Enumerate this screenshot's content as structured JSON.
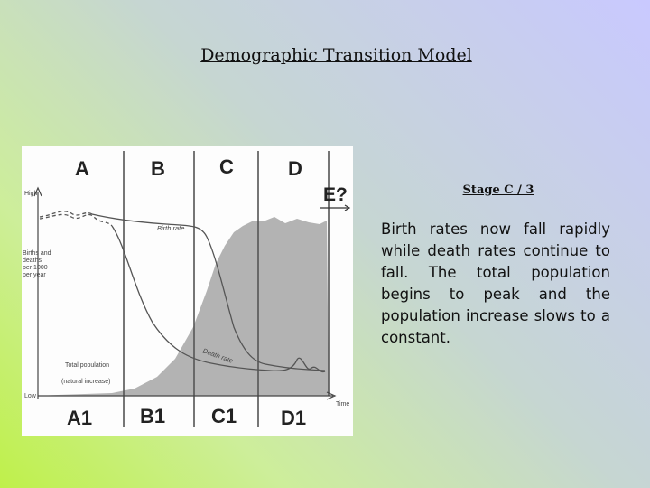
{
  "slide": {
    "title": "Demographic Transition Model",
    "stage_heading": "Stage C / 3",
    "description": "Birth rates now fall rapidly while death rates continue to fall. The total population begins to peak and the population increase slows to a constant."
  },
  "diagram": {
    "stages_top": [
      "A",
      "B",
      "C",
      "D"
    ],
    "stages_bottom": [
      "A1",
      "B1",
      "C1",
      "D1"
    ],
    "extra_stage": "E?",
    "y_axis": {
      "high_label": "High",
      "low_label": "Low",
      "axis_label_lines": [
        "Births and",
        "deaths",
        "per 1000",
        "per year"
      ]
    },
    "x_axis_label": "Time",
    "curve_labels": {
      "birth_rate": "Birth rate",
      "death_rate": "Death rate",
      "total_population": "Total population",
      "natural_increase": "(natural increase)"
    },
    "colors": {
      "population_fill": "#b3b3b3",
      "lines": "#555555"
    }
  }
}
